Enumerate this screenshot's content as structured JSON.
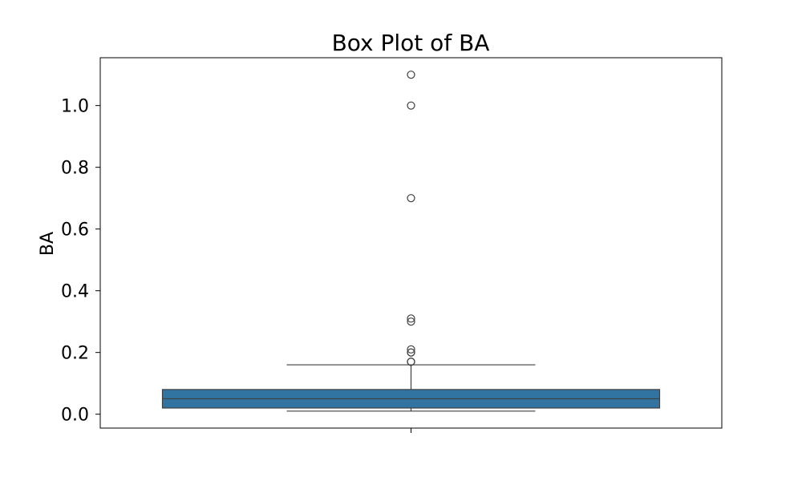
{
  "chart_data": {
    "type": "box",
    "title": "Box Plot of BA",
    "xlabel": "",
    "ylabel": "BA",
    "ylim": [
      -0.045,
      1.155
    ],
    "yticks": [
      0.0,
      0.2,
      0.4,
      0.6,
      0.8,
      1.0
    ],
    "ytick_labels": [
      "0.0",
      "0.2",
      "0.4",
      "0.6",
      "0.8",
      "1.0"
    ],
    "grid": false,
    "legend": "none",
    "box": {
      "whisker_low": 0.01,
      "q1": 0.02,
      "median": 0.05,
      "q3": 0.08,
      "whisker_high": 0.16
    },
    "outliers": [
      0.17,
      0.17,
      0.2,
      0.2,
      0.21,
      0.3,
      0.31,
      0.7,
      1.0,
      1.1
    ],
    "box_color": "#3274a1",
    "line_color": "#3f3f3f"
  }
}
